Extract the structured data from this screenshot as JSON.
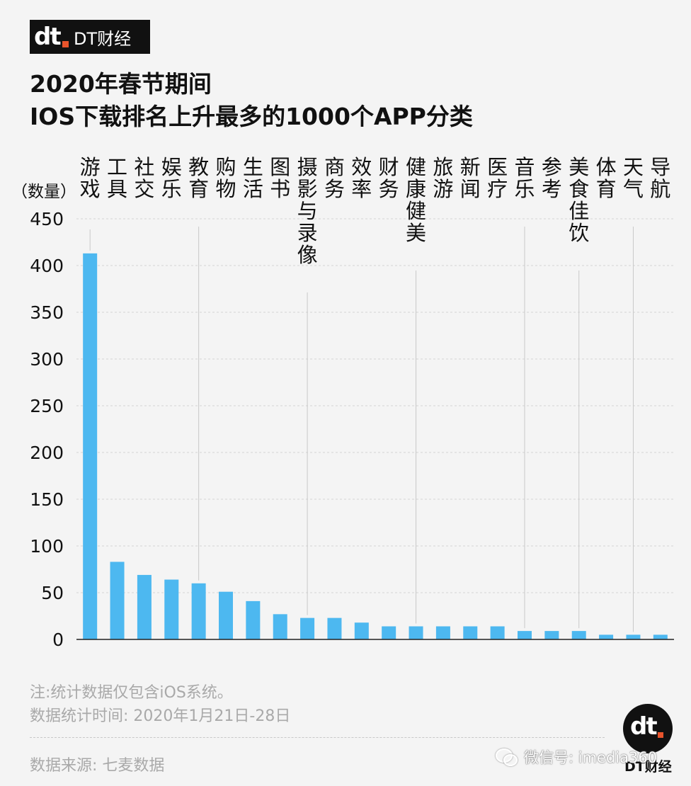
{
  "brand": {
    "name": "DT财经",
    "logo_text": "dt",
    "accent": "#e8542c"
  },
  "title": {
    "line1": "2020年春节期间",
    "line2": "IOS下载排名上升最多的1000个APP分类"
  },
  "chart_data": {
    "type": "bar",
    "ylabel": "（数量）",
    "ylim": [
      0,
      450
    ],
    "yticks": [
      0,
      50,
      100,
      150,
      200,
      250,
      300,
      350,
      400,
      450
    ],
    "grid": true,
    "bar_color": "#4db8f0",
    "categories": [
      "游戏",
      "工具",
      "社交",
      "娱乐",
      "教育",
      "购物",
      "生活",
      "图书",
      "摄影与录像",
      "商务",
      "效率",
      "财务",
      "健康健美",
      "旅游",
      "新闻",
      "医疗",
      "音乐",
      "参考",
      "美食佳饮",
      "体育",
      "天气",
      "导航"
    ],
    "values": [
      413,
      83,
      69,
      64,
      60,
      51,
      41,
      27,
      23,
      23,
      18,
      14,
      14,
      14,
      14,
      14,
      9,
      9,
      9,
      5,
      5,
      5
    ]
  },
  "footer": {
    "note1": "注:统计数据仅包含iOS系统。",
    "note2": "数据统计时间: 2020年1月21日-28日",
    "source": "数据来源: 七麦数据"
  },
  "corner": {
    "logo_text": "dt",
    "brand": "DT财经"
  },
  "watermark": {
    "text": "微信号: imedia360",
    "icon": "wechat-icon"
  }
}
